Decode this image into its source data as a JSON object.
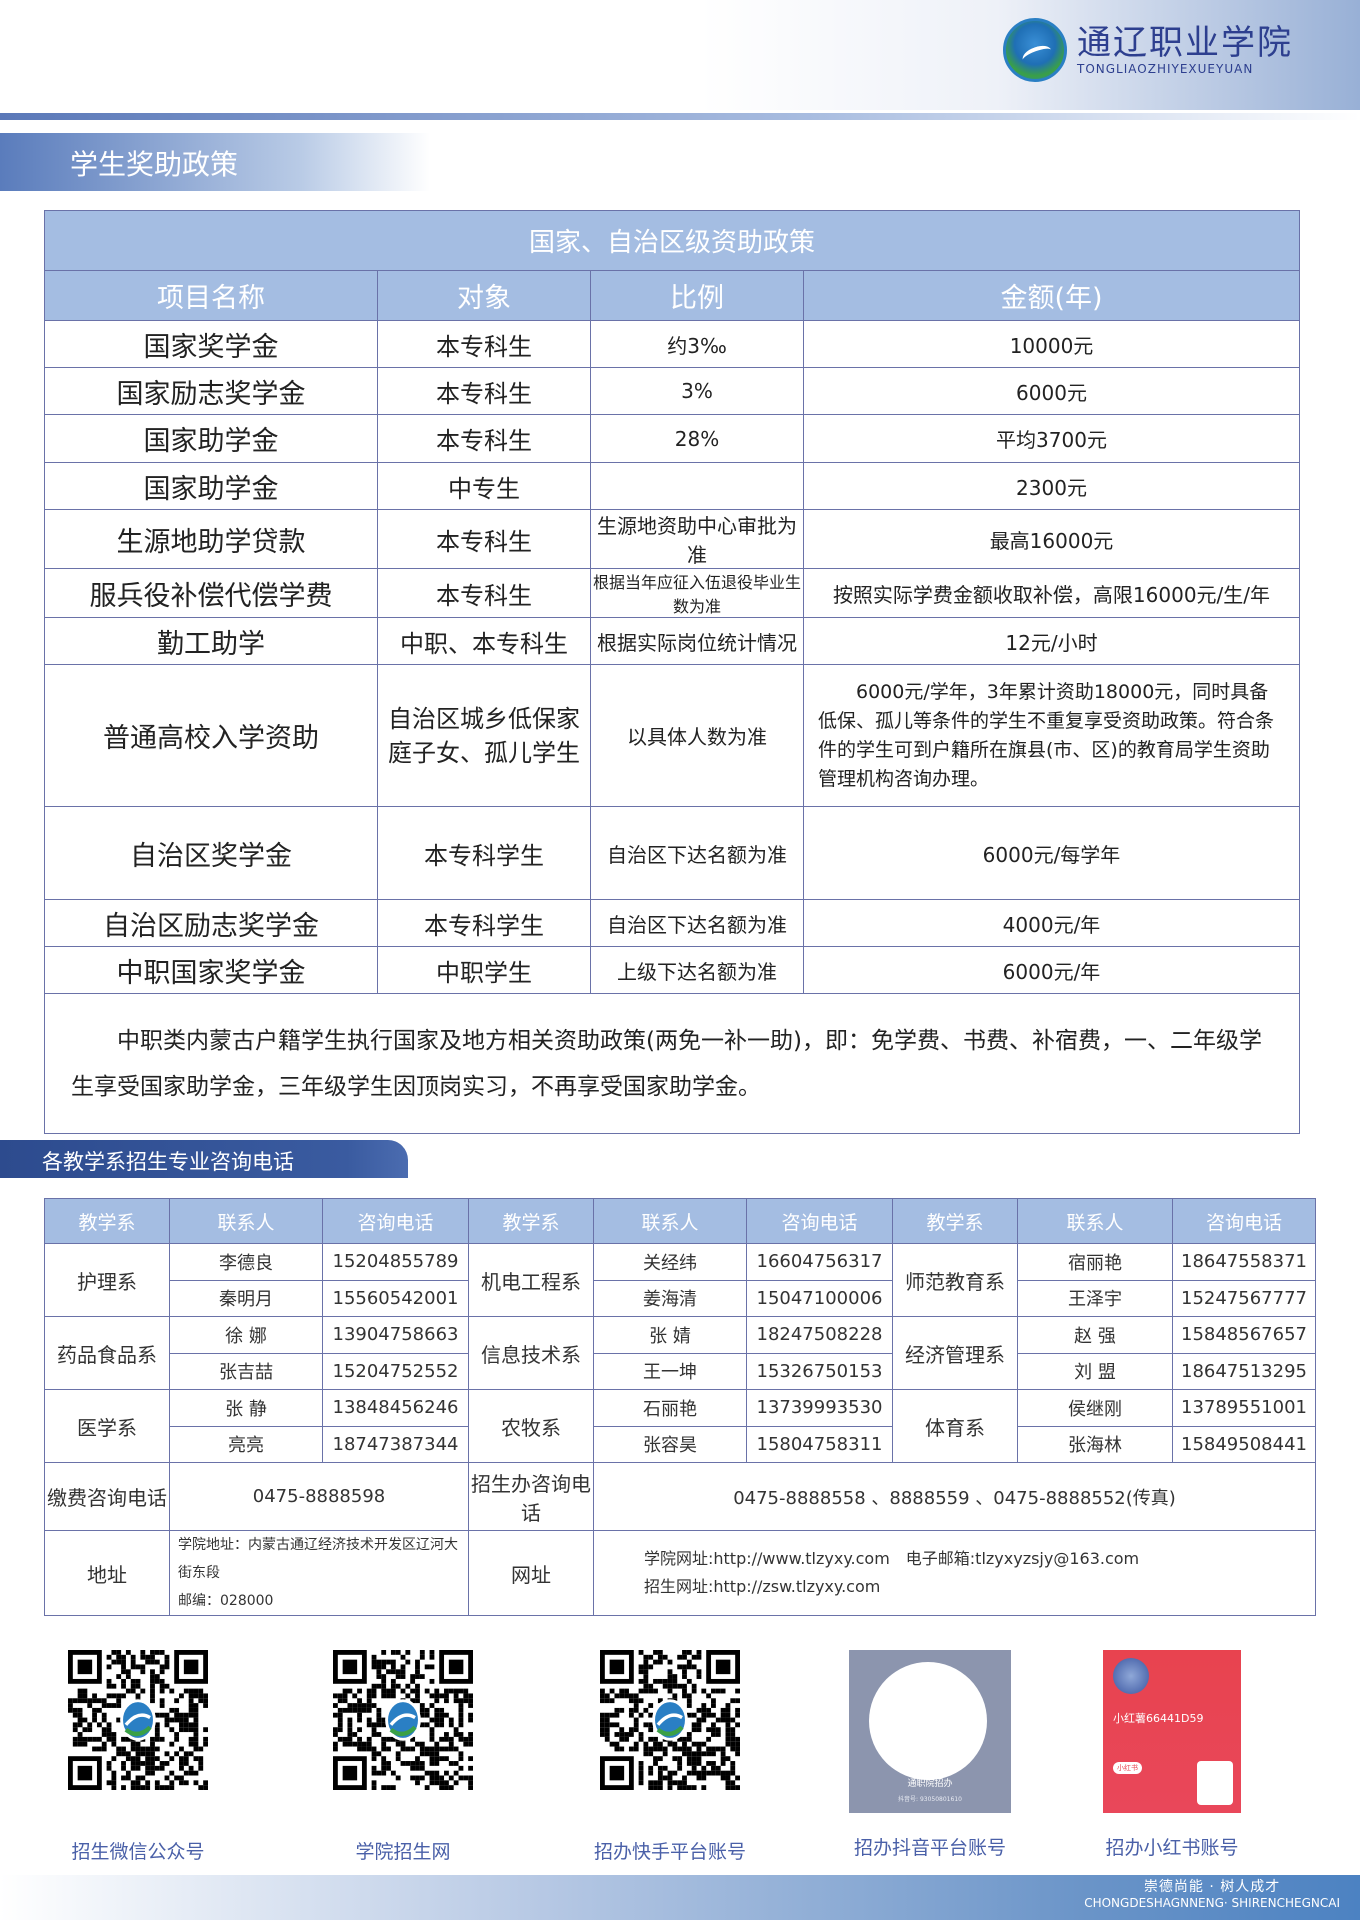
{
  "header": {
    "logo_cn": "通辽职业学院",
    "logo_en": "TONGLIAOZHIYEXUEYUAN"
  },
  "section1_title": "学生奖助政策",
  "policy_table": {
    "title": "国家、自治区级资助政策",
    "headers": [
      "项目名称",
      "对象",
      "比例",
      "金额(年)"
    ],
    "rows": [
      {
        "name": "国家奖学金",
        "target": "本专科生",
        "ratio": "约3‰",
        "amount": "10000元"
      },
      {
        "name": "国家励志奖学金",
        "target": "本专科生",
        "ratio": "3%",
        "amount": "6000元"
      },
      {
        "name": "国家助学金",
        "target": "本专科生",
        "ratio": "28%",
        "amount": "平均3700元"
      },
      {
        "name": "国家助学金",
        "target": "中专生",
        "ratio": "",
        "amount": "2300元"
      },
      {
        "name": "生源地助学贷款",
        "target": "本专科生",
        "ratio": "生源地资助中心审批为准",
        "amount": "最高16000元"
      },
      {
        "name": "服兵役补偿代偿学费",
        "target": "本专科生",
        "ratio": "根据当年应征入伍退役毕业生数为准",
        "amount": "按照实际学费金额收取补偿，高限16000元/生/年"
      },
      {
        "name": "勤工助学",
        "target": "中职、本专科生",
        "ratio": "根据实际岗位统计情况",
        "amount": "12元/小时"
      },
      {
        "name": "普通高校入学资助",
        "target": "自治区城乡低保家庭子女、孤儿学生",
        "ratio": "以具体人数为准",
        "amount": "　　6000元/学年，3年累计资助18000元，同时具备低保、孤儿等条件的学生不重复享受资助政策。符合条件的学生可到户籍所在旗县(市、区)的教育局学生资助管理机构咨询办理。"
      },
      {
        "name": "自治区奖学金",
        "target": "本专科学生",
        "ratio": "自治区下达名额为准",
        "amount": "6000元/每学年"
      },
      {
        "name": "自治区励志奖学金",
        "target": "本专科学生",
        "ratio": "自治区下达名额为准",
        "amount": "4000元/年"
      },
      {
        "name": "中职国家奖学金",
        "target": "中职学生",
        "ratio": "上级下达名额为准",
        "amount": "6000元/年"
      }
    ],
    "note": "　　中职类内蒙古户籍学生执行国家及地方相关资助政策(两免一补一助)，即：免学费、书费、补宿费，一、二年级学生享受国家助学金，三年级学生因顶岗实习，不再享受国家助学金。"
  },
  "section2_title": "各教学系招生专业咨询电话",
  "contact_table": {
    "headers": [
      "教学系",
      "联系人",
      "咨询电话",
      "教学系",
      "联系人",
      "咨询电话",
      "教学系",
      "联系人",
      "咨询电话"
    ],
    "groups": [
      [
        {
          "dept": "护理系",
          "contacts": [
            [
              "李德良",
              "15204855789"
            ],
            [
              "秦明月",
              "15560542001"
            ]
          ]
        },
        {
          "dept": "机电工程系",
          "contacts": [
            [
              "关经纬",
              "16604756317"
            ],
            [
              "姜海清",
              "15047100006"
            ]
          ]
        },
        {
          "dept": "师范教育系",
          "contacts": [
            [
              "宿丽艳",
              "18647558371"
            ],
            [
              "王泽宇",
              "15247567777"
            ]
          ]
        }
      ],
      [
        {
          "dept": "药品食品系",
          "contacts": [
            [
              "徐 娜",
              "13904758663"
            ],
            [
              "张吉喆",
              "15204752552"
            ]
          ]
        },
        {
          "dept": "信息技术系",
          "contacts": [
            [
              "张 婧",
              "18247508228"
            ],
            [
              "王一坤",
              "15326750153"
            ]
          ]
        },
        {
          "dept": "经济管理系",
          "contacts": [
            [
              "赵 强",
              "15848567657"
            ],
            [
              "刘 盟",
              "18647513295"
            ]
          ]
        }
      ],
      [
        {
          "dept": "医学系",
          "contacts": [
            [
              "张 静",
              "13848456246"
            ],
            [
              "亮亮",
              "18747387344"
            ]
          ]
        },
        {
          "dept": "农牧系",
          "contacts": [
            [
              "石丽艳",
              "13739993530"
            ],
            [
              "张容昊",
              "15804758311"
            ]
          ]
        },
        {
          "dept": "体育系",
          "contacts": [
            [
              "侯继刚",
              "13789551001"
            ],
            [
              "张海林",
              "15849508441"
            ]
          ]
        }
      ]
    ],
    "fee_label": "缴费咨询电话",
    "fee_phone": "0475-8888598",
    "office_label": "招生办咨询电话",
    "office_phone": "0475-8888558 、8888559 、0475-8888552(传真)",
    "address_label": "地址",
    "address": "学院地址：内蒙古通辽经济技术开发区辽河大街东段",
    "postcode": "邮编：028000",
    "web_label": "网址",
    "web_line1": "学院网址:http://www.tlzyxy.com　电子邮箱:tlzyxyzsjy@163.com",
    "web_line2": "招生网址:http://zsw.tlzyxy.com"
  },
  "qr_codes": [
    {
      "label": "招生微信公众号"
    },
    {
      "label": "学院招生网"
    },
    {
      "label": "招办快手平台账号"
    },
    {
      "label": "招办抖音平台账号",
      "card_name": "通职院招办",
      "card_id": "抖音号: 93050801610"
    },
    {
      "label": "招办小红书账号",
      "card_name": "小红薯66441D59",
      "card_badge": "小红书"
    }
  ],
  "footer": {
    "slogan_cn": "崇德尚能 · 树人成才",
    "slogan_en": "CHONGDESHAGNNENG· SHIRENCHEGNCAI"
  },
  "colors": {
    "accent": "#a4bde2",
    "border": "#6a72a8",
    "brand": "#2d3f8f",
    "section2": "#2d4b8e"
  }
}
